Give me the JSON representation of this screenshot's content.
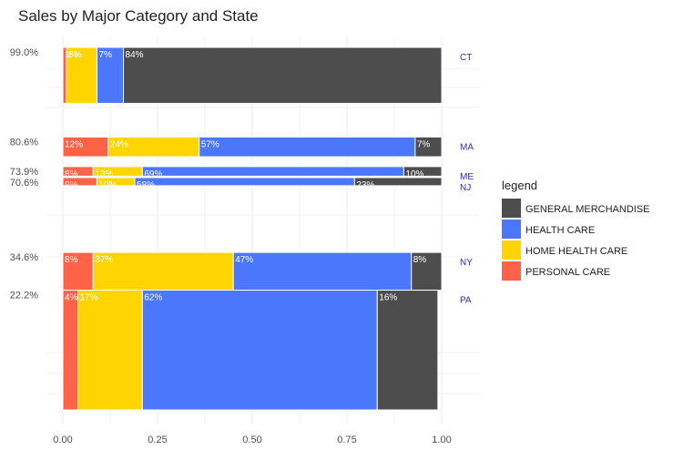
{
  "chart_data": {
    "type": "mosaic",
    "title": "Sales by Major Category and State",
    "xlim": [
      0,
      1
    ],
    "x_ticks": [
      "0.00",
      "0.25",
      "0.50",
      "0.75",
      "1.00"
    ],
    "legend": {
      "title": "legend",
      "placement": "right",
      "items": [
        {
          "name": "GENERAL MERCHANDISE",
          "color": "#4d4d4d"
        },
        {
          "name": "HEALTH CARE",
          "color": "#4a77fb"
        },
        {
          "name": "HOME HEALTH CARE",
          "color": "#ffd500"
        },
        {
          "name": "PERSONAL CARE",
          "color": "#ff6347"
        }
      ]
    },
    "order": [
      "PERSONAL CARE",
      "HOME HEALTH CARE",
      "HEALTH CARE",
      "GENERAL MERCHANDISE"
    ],
    "states": [
      {
        "state": "CT",
        "y_label": "99.0%",
        "bottom": 0.99,
        "top": 1.183,
        "shares": [
          0.01,
          0.08,
          0.07,
          0.84
        ],
        "labels": [
          "1%",
          "8%",
          "7%",
          "84%"
        ]
      },
      {
        "state": "MA",
        "y_label": "80.6%",
        "bottom": 0.806,
        "top": 0.874,
        "shares": [
          0.12,
          0.24,
          0.57,
          0.07
        ],
        "labels": [
          "12%",
          "24%",
          "57%",
          "7%"
        ]
      },
      {
        "state": "ME",
        "y_label": "73.9%",
        "bottom": 0.739,
        "top": 0.772,
        "shares": [
          0.08,
          0.13,
          0.69,
          0.1
        ],
        "labels": [
          "8%",
          "13%",
          "69%",
          "10%"
        ]
      },
      {
        "state": "NJ",
        "y_label": "70.6%",
        "bottom": 0.706,
        "top": 0.734,
        "shares": [
          0.09,
          0.1,
          0.58,
          0.23
        ],
        "labels": [
          "9%",
          "10%",
          "58%",
          "23%"
        ]
      },
      {
        "state": "NY",
        "y_label": "34.6%",
        "bottom": 0.346,
        "top": 0.476,
        "shares": [
          0.08,
          0.37,
          0.47,
          0.08
        ],
        "labels": [
          "8%",
          "37%",
          "47%",
          "8%"
        ]
      },
      {
        "state": "PA",
        "y_label": "22.2%",
        "bottom": 0.222,
        "top": 0.346,
        "shares": [
          0.04,
          0.17,
          0.62,
          0.16
        ],
        "labels": [
          "4%",
          "17%",
          "62%",
          "16%"
        ]
      }
    ]
  }
}
